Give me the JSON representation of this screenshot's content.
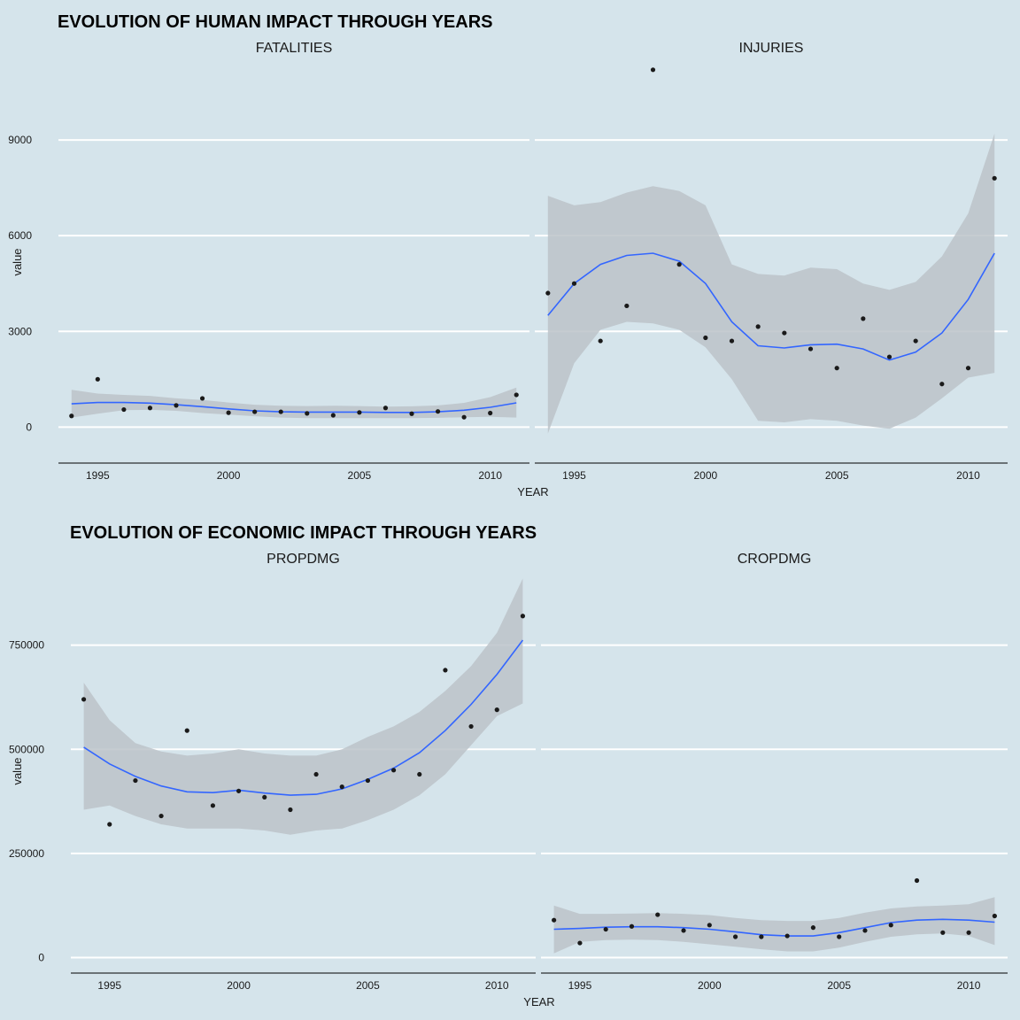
{
  "colors": {
    "background": "#d5e4eb",
    "grid": "#ffffff",
    "ribbon": "#bcc3c9",
    "smooth": "#3366ff",
    "point": "#1a1a1a",
    "axis": "#000000"
  },
  "chart_data": [
    {
      "type": "scatter",
      "title": "EVOLUTION OF HUMAN IMPACT THROUGH YEARS",
      "xlabel": "YEAR",
      "ylabel": "value",
      "xlim": [
        1993.5,
        2011.5
      ],
      "ylim": [
        -1100,
        11500
      ],
      "x_ticks": [
        1995,
        2000,
        2005,
        2010
      ],
      "y_ticks": [
        0,
        3000,
        6000,
        9000
      ],
      "facets": [
        {
          "name": "FATALITIES",
          "x": [
            1994,
            1995,
            1996,
            1997,
            1998,
            1999,
            2000,
            2001,
            2002,
            2003,
            2004,
            2005,
            2006,
            2007,
            2008,
            2009,
            2010,
            2011
          ],
          "y": [
            350,
            1500,
            550,
            600,
            680,
            900,
            450,
            480,
            480,
            430,
            370,
            460,
            600,
            420,
            490,
            310,
            440,
            1010
          ],
          "smooth_x": [
            1994,
            1995,
            1996,
            1997,
            1998,
            1999,
            2000,
            2001,
            2002,
            2003,
            2004,
            2005,
            2006,
            2007,
            2008,
            2009,
            2010,
            2011
          ],
          "smooth_y": [
            730,
            770,
            770,
            750,
            700,
            640,
            570,
            510,
            480,
            470,
            470,
            470,
            460,
            460,
            480,
            530,
            620,
            760
          ],
          "smooth_lo": [
            300,
            420,
            530,
            540,
            510,
            440,
            390,
            340,
            300,
            280,
            280,
            280,
            280,
            280,
            290,
            310,
            320,
            300
          ],
          "smooth_hi": [
            1170,
            1050,
            1010,
            980,
            900,
            850,
            770,
            700,
            670,
            660,
            670,
            660,
            640,
            650,
            680,
            760,
            940,
            1240
          ]
        },
        {
          "name": "INJURIES",
          "x": [
            1994,
            1995,
            1996,
            1997,
            1998,
            1999,
            2000,
            2001,
            2002,
            2003,
            2004,
            2005,
            2006,
            2007,
            2008,
            2009,
            2010,
            2011
          ],
          "y": [
            4200,
            4500,
            2700,
            3800,
            11200,
            5100,
            2800,
            2700,
            3150,
            2950,
            2450,
            1850,
            3400,
            2200,
            2700,
            1350,
            1850,
            7800
          ],
          "smooth_x": [
            1994,
            1995,
            1996,
            1997,
            1998,
            1999,
            2000,
            2001,
            2002,
            2003,
            2004,
            2005,
            2006,
            2007,
            2008,
            2009,
            2010,
            2011
          ],
          "smooth_y": [
            3500,
            4500,
            5100,
            5380,
            5450,
            5200,
            4500,
            3300,
            2550,
            2480,
            2580,
            2600,
            2450,
            2100,
            2350,
            2950,
            4000,
            5450
          ],
          "smooth_lo": [
            -200,
            2000,
            3050,
            3300,
            3250,
            3050,
            2500,
            1500,
            200,
            150,
            250,
            200,
            50,
            -50,
            300,
            900,
            1550,
            1700
          ],
          "smooth_hi": [
            7250,
            6950,
            7050,
            7350,
            7550,
            7400,
            6950,
            5100,
            4800,
            4750,
            5000,
            4950,
            4500,
            4300,
            4550,
            5350,
            6700,
            9200
          ]
        }
      ]
    },
    {
      "type": "scatter",
      "title": "EVOLUTION OF ECONOMIC IMPACT THROUGH YEARS",
      "xlabel": "YEAR",
      "ylabel": "value",
      "xlim": [
        1993.5,
        2011.5
      ],
      "ylim": [
        -35000,
        930000
      ],
      "x_ticks": [
        1995,
        2000,
        2005,
        2010
      ],
      "y_ticks": [
        0,
        250000,
        500000,
        750000
      ],
      "facets": [
        {
          "name": "PROPDMG",
          "x": [
            1994,
            1995,
            1996,
            1997,
            1998,
            1999,
            2000,
            2001,
            2002,
            2003,
            2004,
            2005,
            2006,
            2007,
            2008,
            2009,
            2010,
            2011
          ],
          "y": [
            620000,
            320000,
            425000,
            340000,
            545000,
            365000,
            400000,
            385000,
            355000,
            440000,
            410000,
            425000,
            450000,
            440000,
            690000,
            555000,
            595000,
            820000
          ],
          "smooth_x": [
            1994,
            1995,
            1996,
            1997,
            1998,
            1999,
            2000,
            2001,
            2002,
            2003,
            2004,
            2005,
            2006,
            2007,
            2008,
            2009,
            2010,
            2011
          ],
          "smooth_y": [
            505000,
            465000,
            435000,
            412000,
            398000,
            396000,
            402000,
            395000,
            390000,
            392000,
            405000,
            428000,
            455000,
            492000,
            545000,
            608000,
            680000,
            762000
          ],
          "smooth_lo": [
            355000,
            365000,
            340000,
            320000,
            310000,
            310000,
            310000,
            305000,
            295000,
            305000,
            310000,
            330000,
            355000,
            390000,
            440000,
            510000,
            580000,
            610000
          ],
          "smooth_hi": [
            660000,
            570000,
            515000,
            495000,
            485000,
            490000,
            500000,
            490000,
            485000,
            485000,
            500000,
            530000,
            555000,
            590000,
            640000,
            700000,
            780000,
            910000
          ]
        },
        {
          "name": "CROPDMG",
          "x": [
            1994,
            1995,
            1996,
            1997,
            1998,
            1999,
            2000,
            2001,
            2002,
            2003,
            2004,
            2005,
            2006,
            2007,
            2008,
            2009,
            2010,
            2011
          ],
          "y": [
            90000,
            35000,
            68000,
            75000,
            103000,
            65000,
            78000,
            50000,
            50000,
            52000,
            72000,
            50000,
            65000,
            78000,
            185000,
            60000,
            60000,
            100000
          ],
          "smooth_x": [
            1994,
            1995,
            1996,
            1997,
            1998,
            1999,
            2000,
            2001,
            2002,
            2003,
            2004,
            2005,
            2006,
            2007,
            2008,
            2009,
            2010,
            2011
          ],
          "smooth_y": [
            68000,
            70000,
            73000,
            74000,
            74000,
            72000,
            68000,
            62000,
            55000,
            52000,
            52000,
            60000,
            72000,
            84000,
            90000,
            92000,
            90000,
            85000
          ],
          "smooth_lo": [
            10000,
            38000,
            42000,
            43000,
            42000,
            38000,
            32000,
            26000,
            20000,
            15000,
            15000,
            24000,
            38000,
            50000,
            56000,
            58000,
            52000,
            30000
          ],
          "smooth_hi": [
            125000,
            105000,
            105000,
            106000,
            107000,
            105000,
            102000,
            95000,
            90000,
            88000,
            88000,
            95000,
            108000,
            118000,
            123000,
            125000,
            128000,
            145000
          ]
        }
      ]
    }
  ]
}
